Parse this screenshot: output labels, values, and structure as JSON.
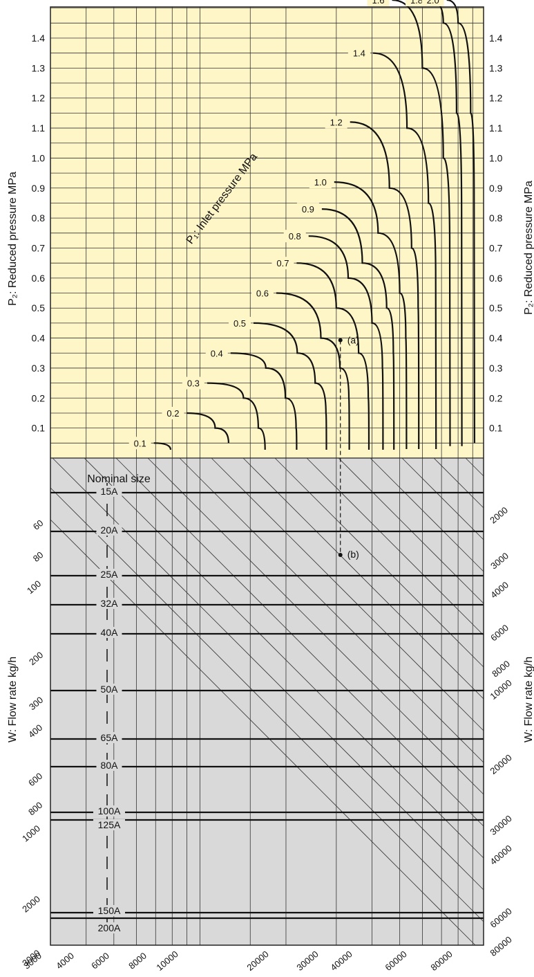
{
  "chart_data": {
    "type": "line",
    "top_panel": {
      "title": "P₁: Inlet pressure MPa",
      "ylabel_left": "P₂: Reduced pressure MPa",
      "ylabel_right": "P₂: Reduced pressure MPa",
      "y_ticks": [
        "0.1",
        "0.2",
        "0.3",
        "0.4",
        "0.5",
        "0.6",
        "0.7",
        "0.8",
        "0.9",
        "1.0",
        "1.1",
        "1.2",
        "1.3",
        "1.4"
      ],
      "ylim": [
        0,
        1.5
      ],
      "grid": true,
      "series": [
        {
          "name": "0.1",
          "x": [
            6900,
            7900
          ],
          "y": [
            0.05,
            0.02
          ]
        },
        {
          "name": "0.2",
          "x": [
            9000,
            11300,
            12600
          ],
          "y": [
            0.15,
            0.1,
            0.05
          ]
        },
        {
          "name": "0.3",
          "x": [
            10600,
            14200,
            16000,
            16900
          ],
          "y": [
            0.25,
            0.2,
            0.1,
            0.02
          ]
        },
        {
          "name": "0.4",
          "x": [
            12800,
            17000,
            19900,
            21700,
            21800
          ],
          "y": [
            0.35,
            0.3,
            0.2,
            0.1,
            0.02
          ]
        },
        {
          "name": "0.5",
          "x": [
            15400,
            21900,
            25300,
            27600,
            27700
          ],
          "y": [
            0.45,
            0.35,
            0.25,
            0.15,
            0.02
          ]
        },
        {
          "name": "0.6",
          "x": [
            18500,
            26500,
            30900,
            33200,
            33300
          ],
          "y": [
            0.55,
            0.4,
            0.3,
            0.2,
            0.02
          ]
        },
        {
          "name": "0.7",
          "x": [
            21800,
            30000,
            35900,
            38800,
            39000
          ],
          "y": [
            0.65,
            0.5,
            0.35,
            0.2,
            0.02
          ]
        },
        {
          "name": "0.8",
          "x": [
            24000,
            33000,
            40000,
            43500,
            43700
          ],
          "y": [
            0.74,
            0.6,
            0.45,
            0.3,
            0.02
          ]
        },
        {
          "name": "0.9",
          "x": [
            26700,
            37000,
            45000,
            47500,
            47700
          ],
          "y": [
            0.83,
            0.65,
            0.5,
            0.35,
            0.02
          ]
        },
        {
          "name": "1.0",
          "x": [
            29500,
            42000,
            50000,
            52500,
            52800
          ],
          "y": [
            0.92,
            0.75,
            0.55,
            0.4,
            0.03
          ]
        },
        {
          "name": "1.2",
          "x": [
            33500,
            46000,
            55000,
            58000,
            58300
          ],
          "y": [
            1.12,
            0.9,
            0.7,
            0.5,
            0.03
          ]
        },
        {
          "name": "1.4",
          "x": [
            40300,
            53000,
            63000,
            66800,
            67000
          ],
          "y": [
            1.35,
            1.1,
            0.85,
            0.6,
            0.03
          ]
        },
        {
          "name": "1.6",
          "x": [
            47000,
            60000,
            71000,
            74800,
            75000
          ],
          "y": [
            1.55,
            1.3,
            1.0,
            0.7,
            0.04
          ]
        },
        {
          "name": "1.8",
          "x": [
            64000,
            71000,
            79000,
            82300,
            82500
          ],
          "y": [
            1.65,
            1.45,
            1.15,
            0.8,
            0.04
          ]
        },
        {
          "name": "2.0",
          "x": [
            73000,
            80000,
            88500,
            91000,
            91300
          ],
          "y": [
            1.65,
            1.45,
            1.15,
            0.85,
            0.05
          ]
        }
      ],
      "points": [
        {
          "label": "(a)",
          "x": 31000,
          "y": 0.55
        }
      ]
    },
    "bottom_panel": {
      "title": "Nominal size",
      "ylabel_left": "W: Flow rate kg/h",
      "ylabel_right": "W: Flow rate kg/h",
      "x_ticks": [
        "3000",
        "4000",
        "6000",
        "8000",
        "10000",
        "20000",
        "30000",
        "40000",
        "60000",
        "80000"
      ],
      "left_flow_ticks": [
        "60",
        "80",
        "100",
        "200",
        "300",
        "400",
        "600",
        "800",
        "1000",
        "2000",
        "3000"
      ],
      "right_flow_ticks": [
        "2000",
        "3000",
        "4000",
        "6000",
        "8000",
        "10000",
        "20000",
        "30000",
        "40000",
        "60000",
        "80000"
      ],
      "nominal_sizes": [
        "15A",
        "20A",
        "25A",
        "32A",
        "40A",
        "50A",
        "65A",
        "80A",
        "100A",
        "125A",
        "150A",
        "200A"
      ],
      "grid": true,
      "points": [
        {
          "label": "(b)",
          "x": 31000
        }
      ]
    }
  },
  "colors": {
    "top_background": "#fff6c8",
    "bottom_background": "#d9d9d9",
    "line": "#111111"
  }
}
